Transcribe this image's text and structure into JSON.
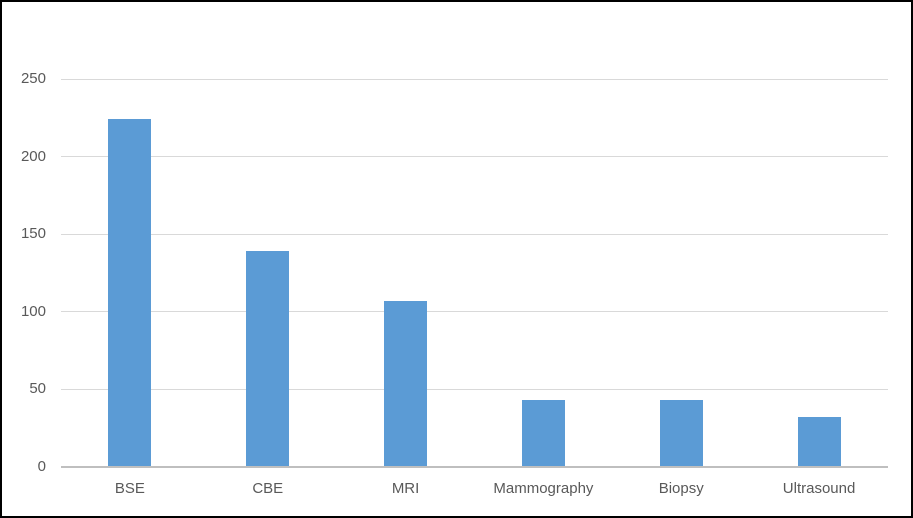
{
  "chart_data": {
    "type": "bar",
    "title": "",
    "xlabel": "",
    "ylabel": "",
    "categories": [
      "BSE",
      "CBE",
      "MRI",
      "Mammography",
      "Biopsy",
      "Ultrasound"
    ],
    "values": [
      224,
      139,
      107,
      43,
      43,
      32
    ],
    "ylim": [
      0,
      250
    ],
    "yticks": [
      250,
      200,
      150,
      100,
      50,
      0
    ],
    "grid": true,
    "legend": false,
    "bar_color": "#5B9BD5",
    "gridline_color": "#D9D9D9",
    "axis_line_color": "#BFBFBF",
    "label_color": "#595959",
    "background_color": "#FFFFFF",
    "frame_border_color": "#000000"
  }
}
